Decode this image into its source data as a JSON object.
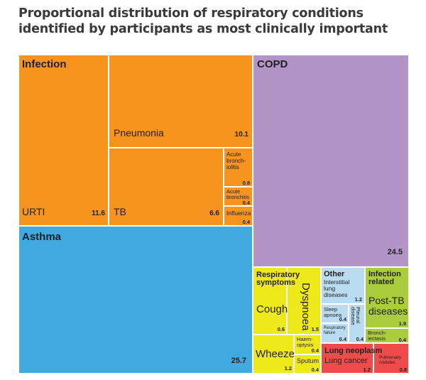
{
  "chart_data": {
    "type": "treemap",
    "title": [
      "Proportional distribution of respiratory conditions",
      "identified by participants as most clinically important"
    ],
    "colors": {
      "infection": "#f7941d",
      "asthma": "#3fa9e0",
      "copd": "#b294c7",
      "respiratory_symptoms": "#ede91a",
      "other": "#b9dcf0",
      "infection_related": "#a9cd3c",
      "lung_neoplasm": "#ef4b4b",
      "border": "#ffffff"
    },
    "groups": [
      {
        "id": "infection",
        "label": "Infection",
        "color_key": "infection",
        "items": [
          {
            "id": "urti",
            "label": [
              "URTI"
            ],
            "value": "11.6"
          },
          {
            "id": "pneumonia",
            "label": [
              "Pneumonia"
            ],
            "value": "10.1"
          },
          {
            "id": "tb",
            "label": [
              "TB"
            ],
            "value": "6.6"
          },
          {
            "id": "acute-bronchiolitis",
            "label": [
              "Acute",
              "bronch-",
              "iolitis"
            ],
            "value": "0.8"
          },
          {
            "id": "acute-bronchitis",
            "label": [
              "Acute",
              "bronchitis"
            ],
            "value": "0.4"
          },
          {
            "id": "influenza",
            "label": [
              "Influenza"
            ],
            "value": "0.4"
          }
        ]
      },
      {
        "id": "asthma",
        "label": "Asthma",
        "color_key": "asthma",
        "items": [
          {
            "id": "asthma",
            "label": [],
            "value": "25.7"
          }
        ]
      },
      {
        "id": "copd",
        "label": "COPD",
        "color_key": "copd",
        "items": [
          {
            "id": "copd",
            "label": [],
            "value": "24.5"
          }
        ]
      },
      {
        "id": "respiratory-symptoms",
        "label": [
          "Respiratory",
          "symptoms"
        ],
        "color_key": "respiratory_symptoms",
        "items": [
          {
            "id": "cough",
            "label": [
              "Cough"
            ],
            "value": "0.6"
          },
          {
            "id": "dyspnoea",
            "label": [
              "Dyspnoea"
            ],
            "value": "1.5"
          },
          {
            "id": "wheeze",
            "label": [
              "Wheeze"
            ],
            "value": "1.2"
          },
          {
            "id": "haemoptysis",
            "label": [
              "Haem-",
              "optysis"
            ],
            "value": "0.4"
          },
          {
            "id": "sputum",
            "label": [
              "Sputum"
            ],
            "value": "0.4"
          }
        ]
      },
      {
        "id": "other",
        "label": "Other",
        "color_key": "other",
        "items": [
          {
            "id": "interstitial-lung-diseases",
            "label": [
              "Interstitial",
              "lung",
              "diseases"
            ],
            "value": "1.2"
          },
          {
            "id": "sleep-apnoea",
            "label": [
              "Sleep",
              "apnoea"
            ],
            "value": "0.4"
          },
          {
            "id": "respiratory-failure",
            "label": [
              "Respiratory",
              "failure"
            ],
            "value": "0.4"
          },
          {
            "id": "pleural-disease",
            "label": [
              "Pleural",
              "disease"
            ],
            "value": "0.4"
          }
        ]
      },
      {
        "id": "infection-related",
        "label": [
          "Infection",
          "related"
        ],
        "color_key": "infection_related",
        "items": [
          {
            "id": "post-tb-diseases",
            "label": [
              "Post-TB",
              "diseases"
            ],
            "value": "1.9"
          },
          {
            "id": "bronchiectasis",
            "label": [
              "Bronch-",
              "iectasis"
            ],
            "value": "0.4"
          }
        ]
      },
      {
        "id": "lung-neoplasm",
        "label": "Lung neoplasm",
        "color_key": "lung_neoplasm",
        "items": [
          {
            "id": "lung-cancer",
            "label": [
              "Lung cancer"
            ],
            "value": "1.2"
          },
          {
            "id": "pulmonary-nodules",
            "label": [
              "Pulmonary",
              "nodules"
            ],
            "value": "0.8"
          }
        ]
      }
    ]
  }
}
